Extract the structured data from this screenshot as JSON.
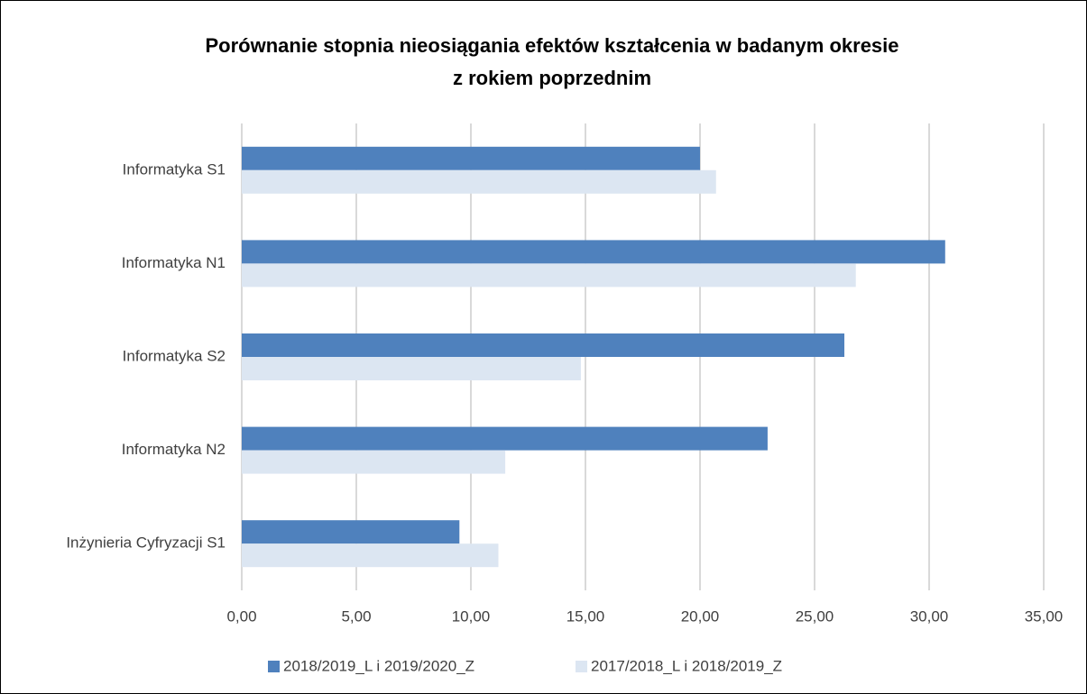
{
  "chart_data": {
    "type": "hbar",
    "title": [
      "Porównanie stopnia nieosiągania efektów kształcenia w badanym okresie",
      "z rokiem poprzednim"
    ],
    "categories": [
      "Informatyka S1",
      "Informatyka N1",
      "Informatyka S2",
      "Informatyka N2",
      "Inżynieria Cyfryzacji S1"
    ],
    "series": [
      {
        "name": "2018/2019_L i 2019/2020_Z",
        "color": "#4f81bd",
        "values": [
          20.0,
          30.7,
          26.3,
          22.95,
          9.5
        ]
      },
      {
        "name": "2017/2018_L i 2018/2019_Z",
        "color": "#dce6f2",
        "values": [
          20.7,
          26.8,
          14.8,
          11.5,
          11.2
        ]
      }
    ],
    "xlim": [
      0,
      35
    ],
    "xticks": [
      {
        "value": 0,
        "label": "0,00"
      },
      {
        "value": 5,
        "label": "5,00"
      },
      {
        "value": 10,
        "label": "10,00"
      },
      {
        "value": 15,
        "label": "15,00"
      },
      {
        "value": 20,
        "label": "20,00"
      },
      {
        "value": 25,
        "label": "25,00"
      },
      {
        "value": 30,
        "label": "30,00"
      },
      {
        "value": 35,
        "label": "35,00"
      }
    ],
    "grid": true,
    "legend": "bottom"
  }
}
